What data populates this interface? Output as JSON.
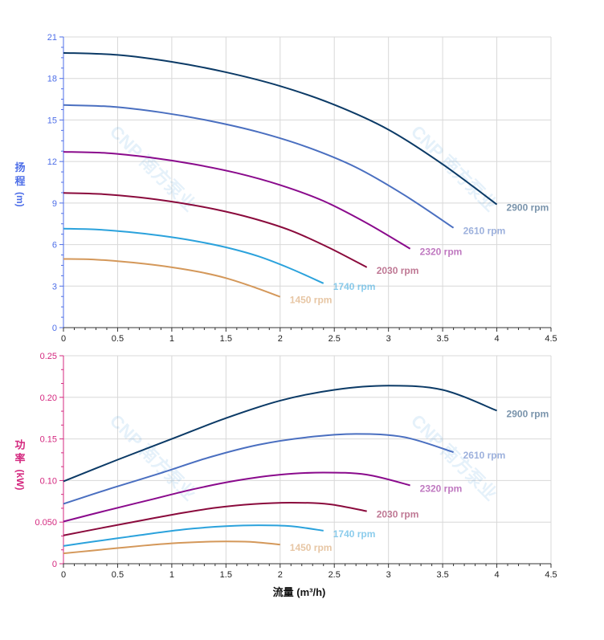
{
  "watermark": "CNP 南方泵业",
  "chart_data": [
    {
      "type": "line",
      "ylabel": [
        "扬",
        "程",
        "(m)"
      ],
      "xlabel": "",
      "xlim": [
        0,
        4.5
      ],
      "ylim": [
        0,
        21
      ],
      "xticks": [
        "0",
        "0.5",
        "1",
        "1.5",
        "2",
        "2.5",
        "3",
        "3.5",
        "4",
        "4.5"
      ],
      "yticks": [
        "0",
        "3",
        "6",
        "9",
        "12",
        "15",
        "18",
        "21"
      ],
      "tick_color": "#4d6ee8",
      "grid": true,
      "series": [
        {
          "name": "2900 rpm",
          "color": "#0b3a66",
          "x": [
            0,
            0.5,
            1,
            1.5,
            2,
            2.5,
            3,
            3.5,
            4
          ],
          "y": [
            19.85,
            19.7,
            19.2,
            18.45,
            17.45,
            16.1,
            14.3,
            11.8,
            8.9
          ]
        },
        {
          "name": "2610 rpm",
          "color": "#4a6fc0",
          "x": [
            0,
            0.45,
            0.9,
            1.35,
            1.8,
            2.25,
            2.7,
            3.15,
            3.6
          ],
          "y": [
            16.08,
            15.96,
            15.55,
            14.94,
            14.13,
            13.04,
            11.58,
            9.56,
            7.21
          ]
        },
        {
          "name": "2320 rpm",
          "color": "#8a0a8c",
          "x": [
            0,
            0.4,
            0.8,
            1.2,
            1.6,
            2.0,
            2.4,
            2.8,
            3.2
          ],
          "y": [
            12.7,
            12.61,
            12.29,
            11.81,
            11.17,
            10.3,
            9.15,
            7.55,
            5.7
          ]
        },
        {
          "name": "2030 rpm",
          "color": "#8a0a3c",
          "x": [
            0,
            0.35,
            0.7,
            1.05,
            1.4,
            1.75,
            2.1,
            2.45,
            2.8
          ],
          "y": [
            9.73,
            9.65,
            9.41,
            9.04,
            8.55,
            7.89,
            7.01,
            5.78,
            4.36
          ]
        },
        {
          "name": "1740 rpm",
          "color": "#2ba2dc",
          "x": [
            0,
            0.3,
            0.6,
            0.9,
            1.2,
            1.5,
            1.8,
            2.1,
            2.4
          ],
          "y": [
            7.15,
            7.09,
            6.91,
            6.64,
            6.28,
            5.8,
            5.15,
            4.25,
            3.2
          ]
        },
        {
          "name": "1450 rpm",
          "color": "#d4985a",
          "x": [
            0,
            0.25,
            0.5,
            0.75,
            1.0,
            1.25,
            1.5,
            1.75,
            2.0
          ],
          "y": [
            4.96,
            4.93,
            4.8,
            4.61,
            4.36,
            4.03,
            3.58,
            2.95,
            2.23
          ]
        }
      ]
    },
    {
      "type": "line",
      "ylabel": [
        "功",
        "率",
        "(kW)"
      ],
      "xlabel": "流量 (m³/h)",
      "xlim": [
        0,
        4.5
      ],
      "ylim": [
        0,
        0.25
      ],
      "xticks": [
        "0",
        "0.5",
        "1",
        "1.5",
        "2",
        "2.5",
        "3",
        "3.5",
        "4",
        "4.5"
      ],
      "yticks": [
        "0",
        "0.050",
        "0.10",
        "0.15",
        "0.20",
        "0.25"
      ],
      "tick_color": "#d4287f",
      "grid": true,
      "series": [
        {
          "name": "2900 rpm",
          "color": "#0b3a66",
          "x": [
            0,
            0.5,
            1,
            1.5,
            2,
            2.5,
            3,
            3.5,
            4
          ],
          "y": [
            0.099,
            0.125,
            0.15,
            0.175,
            0.196,
            0.209,
            0.214,
            0.209,
            0.184
          ]
        },
        {
          "name": "2610 rpm",
          "color": "#4a6fc0",
          "x": [
            0,
            0.45,
            0.9,
            1.35,
            1.8,
            2.25,
            2.7,
            3.15,
            3.6
          ],
          "y": [
            0.072,
            0.091,
            0.109,
            0.128,
            0.143,
            0.152,
            0.156,
            0.152,
            0.134
          ]
        },
        {
          "name": "2320 rpm",
          "color": "#8a0a8c",
          "x": [
            0,
            0.4,
            0.8,
            1.2,
            1.6,
            2.0,
            2.4,
            2.8,
            3.2
          ],
          "y": [
            0.0507,
            0.064,
            0.0768,
            0.0896,
            0.1,
            0.107,
            0.1096,
            0.107,
            0.0942
          ]
        },
        {
          "name": "2030 rpm",
          "color": "#8a0a3c",
          "x": [
            0,
            0.35,
            0.7,
            1.05,
            1.4,
            1.75,
            2.1,
            2.45,
            2.8
          ],
          "y": [
            0.034,
            0.0429,
            0.0515,
            0.06,
            0.0672,
            0.0717,
            0.0734,
            0.0716,
            0.0631
          ]
        },
        {
          "name": "1740 rpm",
          "color": "#2ba2dc",
          "x": [
            0,
            0.3,
            0.6,
            0.9,
            1.2,
            1.5,
            1.8,
            2.1,
            2.4
          ],
          "y": [
            0.0214,
            0.027,
            0.0324,
            0.0378,
            0.0423,
            0.0451,
            0.0462,
            0.0451,
            0.0397
          ]
        },
        {
          "name": "1450 rpm",
          "color": "#d4985a",
          "x": [
            0,
            0.25,
            0.5,
            0.75,
            1.0,
            1.25,
            1.5,
            1.75,
            2.0
          ],
          "y": [
            0.0124,
            0.0156,
            0.0188,
            0.0219,
            0.0245,
            0.0261,
            0.0268,
            0.0261,
            0.023
          ]
        }
      ]
    }
  ]
}
